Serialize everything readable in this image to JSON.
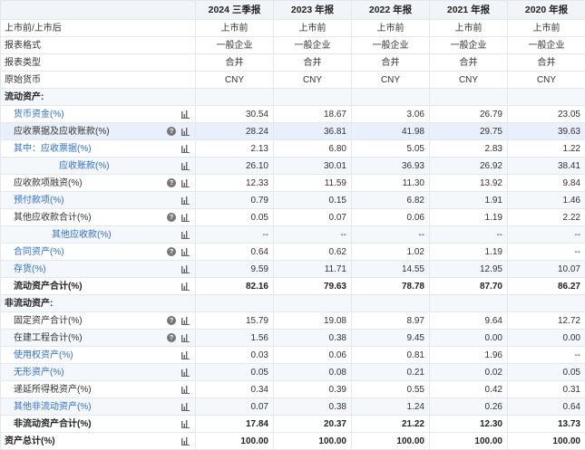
{
  "columns": [
    "2024 三季报",
    "2023 年报",
    "2022 年报",
    "2021 年报",
    "2020 年报"
  ],
  "meta_rows": [
    {
      "label": "上市前/上市后",
      "values": [
        "上市前",
        "上市前",
        "上市前",
        "上市前",
        "上市前"
      ]
    },
    {
      "label": "报表格式",
      "values": [
        "一般企业",
        "一般企业",
        "一般企业",
        "一般企业",
        "一般企业"
      ]
    },
    {
      "label": "报表类型",
      "values": [
        "合并",
        "合并",
        "合并",
        "合并",
        "合并"
      ]
    },
    {
      "label": "原始货币",
      "values": [
        "CNY",
        "CNY",
        "CNY",
        "CNY",
        "CNY"
      ]
    }
  ],
  "sections": {
    "current": "流动资产:",
    "noncurrent": "非流动资产:"
  },
  "current_rows": [
    {
      "label": "货币资金(%)",
      "values": [
        "30.54",
        "18.67",
        "3.06",
        "26.79",
        "23.05"
      ]
    },
    {
      "label": "应收票据及应收账款(%)",
      "values": [
        "28.24",
        "36.81",
        "41.98",
        "29.75",
        "39.63"
      ]
    },
    {
      "label": "其中：应收票据(%)",
      "values": [
        "2.13",
        "6.80",
        "5.05",
        "2.83",
        "1.22"
      ]
    },
    {
      "label": "应收账款(%)",
      "values": [
        "26.10",
        "30.01",
        "36.93",
        "26.92",
        "38.41"
      ]
    },
    {
      "label": "应收款项融资(%)",
      "values": [
        "12.33",
        "11.59",
        "11.30",
        "13.92",
        "9.84"
      ]
    },
    {
      "label": "预付款项(%)",
      "values": [
        "0.79",
        "0.15",
        "6.82",
        "1.91",
        "1.46"
      ]
    },
    {
      "label": "其他应收款合计(%)",
      "values": [
        "0.05",
        "0.07",
        "0.06",
        "1.19",
        "2.22"
      ]
    },
    {
      "label": "其他应收款(%)",
      "values": [
        "--",
        "--",
        "--",
        "--",
        "--"
      ]
    },
    {
      "label": "合同资产(%)",
      "values": [
        "0.64",
        "0.62",
        "1.02",
        "1.19",
        "--"
      ]
    },
    {
      "label": "存货(%)",
      "values": [
        "9.59",
        "11.71",
        "14.55",
        "12.95",
        "10.07"
      ]
    },
    {
      "label": "流动资产合计(%)",
      "values": [
        "82.16",
        "79.63",
        "78.78",
        "87.70",
        "86.27"
      ]
    }
  ],
  "noncurrent_rows": [
    {
      "label": "固定资产合计(%)",
      "values": [
        "15.79",
        "19.08",
        "8.97",
        "9.64",
        "12.72"
      ]
    },
    {
      "label": "在建工程合计(%)",
      "values": [
        "1.56",
        "0.38",
        "9.45",
        "0.00",
        "0.00"
      ]
    },
    {
      "label": "使用权资产(%)",
      "values": [
        "0.03",
        "0.06",
        "0.81",
        "1.96",
        "--"
      ]
    },
    {
      "label": "无形资产(%)",
      "values": [
        "0.05",
        "0.08",
        "0.21",
        "0.02",
        "0.05"
      ]
    },
    {
      "label": "递延所得税资产(%)",
      "values": [
        "0.34",
        "0.39",
        "0.55",
        "0.42",
        "0.31"
      ]
    },
    {
      "label": "其他非流动资产(%)",
      "values": [
        "0.07",
        "0.38",
        "1.24",
        "0.26",
        "0.64"
      ]
    },
    {
      "label": "非流动资产合计(%)",
      "values": [
        "17.84",
        "20.37",
        "21.22",
        "12.30",
        "13.73"
      ]
    }
  ],
  "total_row": {
    "label": "资产总计(%)",
    "values": [
      "100.00",
      "100.00",
      "100.00",
      "100.00",
      "100.00"
    ]
  },
  "icons": {
    "help": "question-circle-icon",
    "chart": "bar-chart-icon",
    "help_glyph": "?"
  },
  "colors": {
    "link": "#2f6fd1",
    "header_bg": "#f1f4f9",
    "highlight_bg": "#e9f0fb"
  }
}
